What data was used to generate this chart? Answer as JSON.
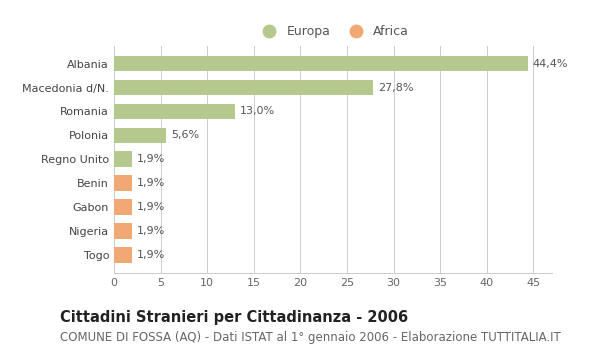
{
  "categories": [
    "Albania",
    "Macedonia d/N.",
    "Romania",
    "Polonia",
    "Regno Unito",
    "Benin",
    "Gabon",
    "Nigeria",
    "Togo"
  ],
  "values": [
    44.4,
    27.8,
    13.0,
    5.6,
    1.9,
    1.9,
    1.9,
    1.9,
    1.9
  ],
  "labels": [
    "44,4%",
    "27,8%",
    "13,0%",
    "5,6%",
    "1,9%",
    "1,9%",
    "1,9%",
    "1,9%",
    "1,9%"
  ],
  "colors": [
    "#b5c98e",
    "#b5c98e",
    "#b5c98e",
    "#b5c98e",
    "#b5c98e",
    "#f0a875",
    "#f0a875",
    "#f0a875",
    "#f0a875"
  ],
  "europa_color": "#b5c98e",
  "africa_color": "#f0a875",
  "title": "Cittadini Stranieri per Cittadinanza - 2006",
  "subtitle": "COMUNE DI FOSSA (AQ) - Dati ISTAT al 1° gennaio 2006 - Elaborazione TUTTITALIA.IT",
  "xlim": [
    0,
    47
  ],
  "xticks": [
    0,
    5,
    10,
    15,
    20,
    25,
    30,
    35,
    40,
    45
  ],
  "background_color": "#ffffff",
  "plot_bg_color": "#ffffff",
  "grid_color": "#cccccc",
  "bar_height": 0.65,
  "title_fontsize": 10.5,
  "subtitle_fontsize": 8.5,
  "label_fontsize": 8,
  "tick_fontsize": 8,
  "legend_fontsize": 9
}
